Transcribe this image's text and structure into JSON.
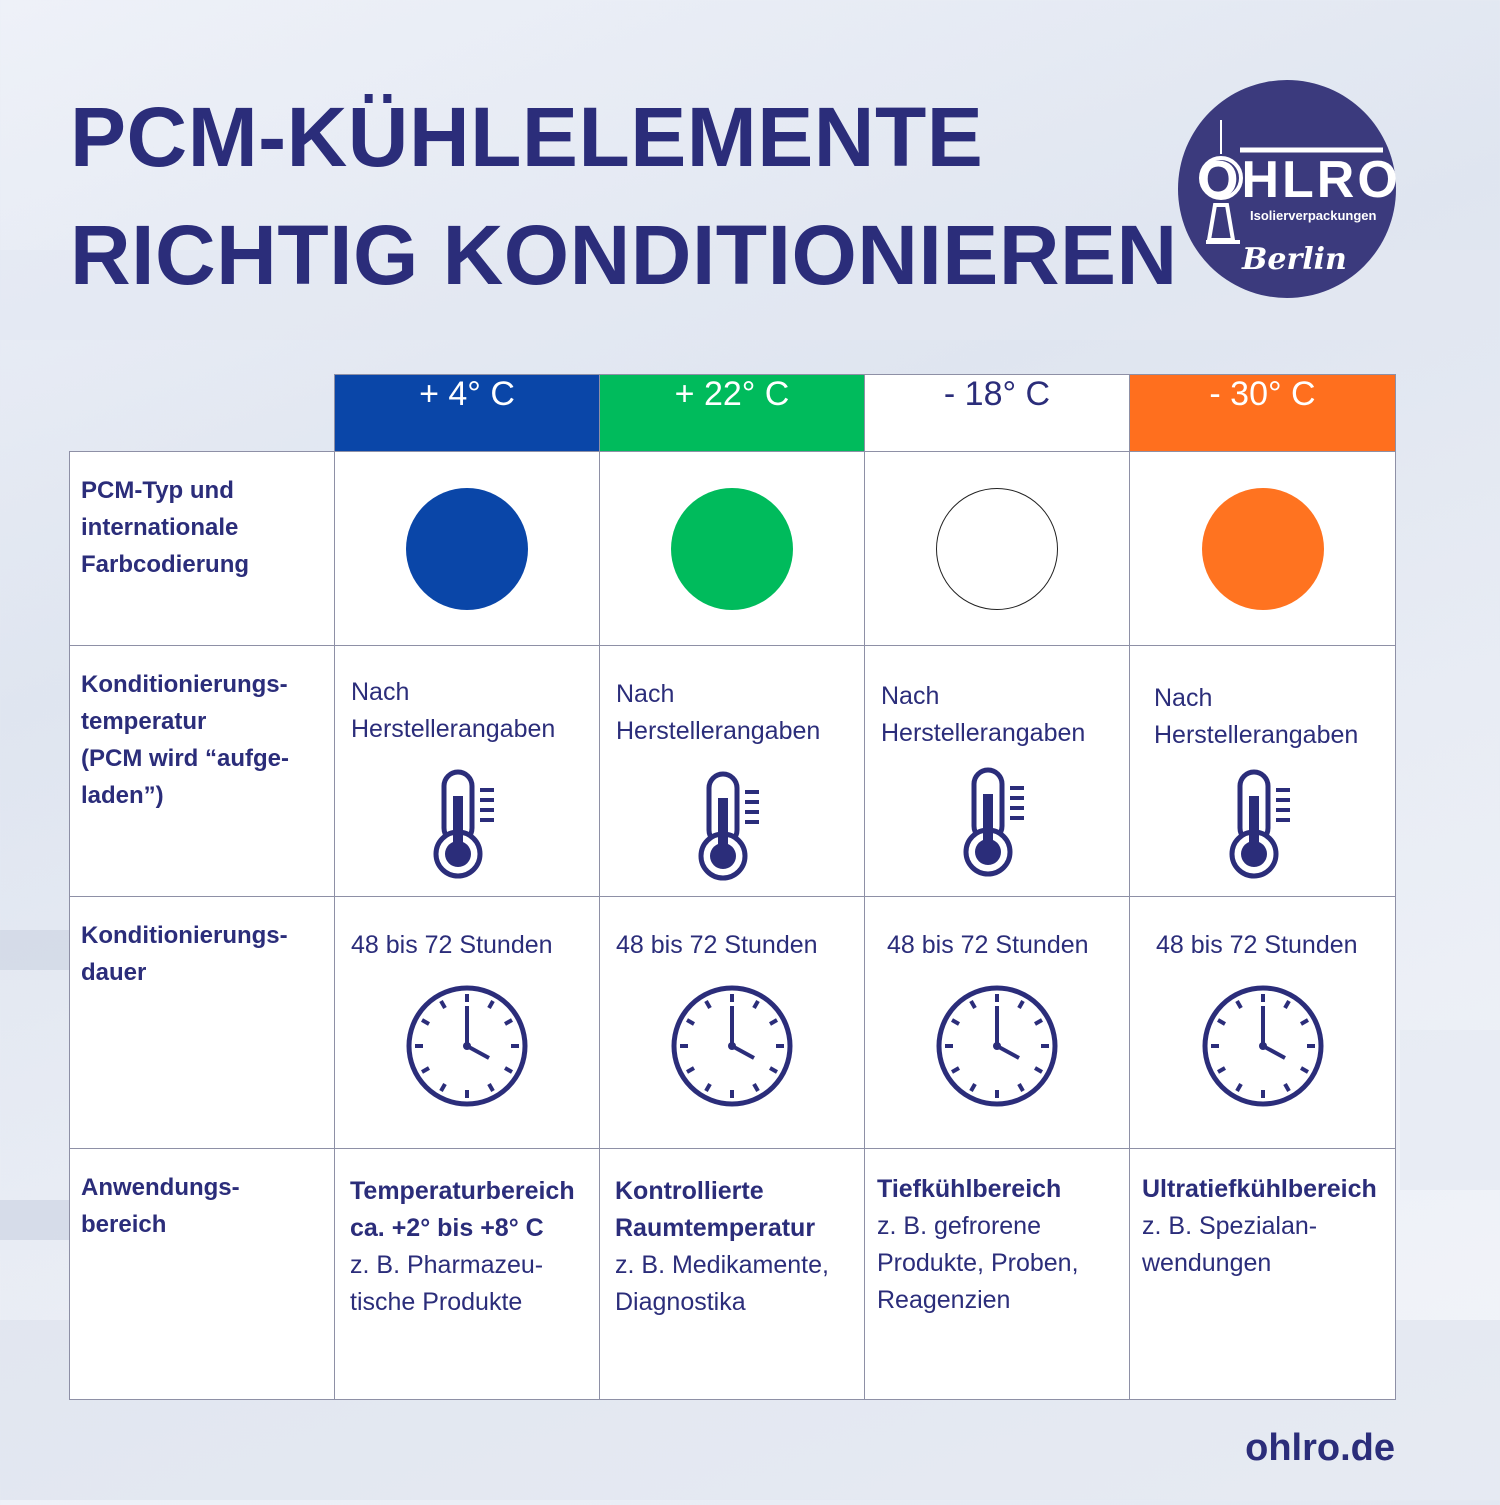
{
  "title": {
    "line1": "PCM-KÜHLELEMENTE",
    "line2": "RICHTIG KONDITIONIEREN"
  },
  "logo": {
    "name": "OHLRO",
    "subtitle": "Isolierverpackungen",
    "city": "Berlin",
    "color": "#3b3a7d"
  },
  "columns": [
    {
      "temp": "+ 4° C",
      "color": "#0a46a8"
    },
    {
      "temp": "+ 22° C",
      "color": "#00bb5c"
    },
    {
      "temp": "- 18° C",
      "color": "#ffffff"
    },
    {
      "temp": "- 30° C",
      "color": "#ff6f1e"
    }
  ],
  "rows": {
    "type": {
      "label": "PCM-Typ und\ninternationale\nFarbcodierung"
    },
    "conditioning_temp": {
      "label": "Konditionierungs-\ntemperatur\n(PCM wird “aufge-\nladen”)",
      "values": [
        "Nach Herstellerangaben",
        "Nach Herstellerangaben",
        "Nach Herstellerangaben",
        "Nach Herstellerangaben"
      ],
      "icon": "thermometer-icon"
    },
    "duration": {
      "label": "Konditionierungs-\ndauer",
      "values": [
        "48 bis 72 Stunden",
        "48 bis 72 Stunden",
        "48 bis 72 Stunden",
        "48 bis 72 Stunden"
      ],
      "icon": "clock-icon"
    },
    "application": {
      "label": "Anwendungs-\nbereich",
      "values": [
        {
          "heading": "Temperaturbereich ca. +2° bis +8° C",
          "text": "z. B. Pharmazeu-tische Produkte"
        },
        {
          "heading": "Kontrollierte Raumtemperatur",
          "text": "z. B. Medikamente, Diagnostika"
        },
        {
          "heading": "Tiefkühlbereich",
          "text": "z. B. gefrorene Produkte, Proben, Reagenzien"
        },
        {
          "heading": "Ultratiefkühlbereich",
          "text": "z. B. Spezialan-wendungen"
        }
      ]
    }
  },
  "footer": {
    "url": "ohlro.de"
  },
  "colors": {
    "text": "#2b2d7a",
    "border": "#8e90a6"
  }
}
